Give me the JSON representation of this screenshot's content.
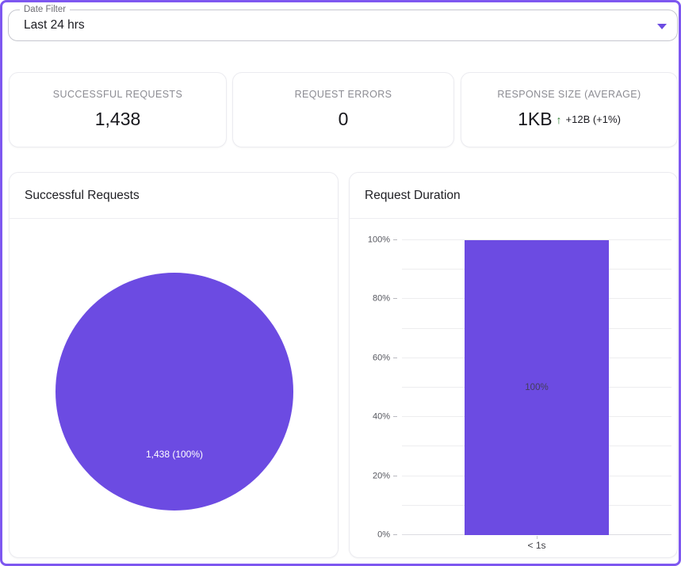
{
  "date_filter": {
    "label": "Date Filter",
    "value": "Last 24 hrs"
  },
  "stats": [
    {
      "label": "SUCCESSFUL REQUESTS",
      "value": "1,438"
    },
    {
      "label": "REQUEST ERRORS",
      "value": "0"
    },
    {
      "label": "RESPONSE SIZE (AVERAGE)",
      "value": "1KB",
      "delta_arrow": "↑",
      "delta": "+12B (+1%)",
      "delta_color": "#2e7d32"
    }
  ],
  "cards": {
    "successful_requests_title": "Successful Requests",
    "request_duration_title": "Request Duration"
  },
  "colors": {
    "accent_purple": "#6c4be2",
    "page_border": "#7e57f0",
    "positive_green": "#2e7d32"
  },
  "chart_data": [
    {
      "type": "pie",
      "title": "Successful Requests",
      "slices": [
        {
          "label": "1,438 (100%)",
          "value": 1438,
          "percent": 100,
          "color": "#6c4be2"
        }
      ],
      "legend_position": "none"
    },
    {
      "type": "bar",
      "title": "Request Duration",
      "categories": [
        "< 1s"
      ],
      "values": [
        100
      ],
      "bar_label": "100%",
      "bar_color": "#6c4be2",
      "ylim": [
        0,
        100
      ],
      "yticks": [
        "0%",
        "20%",
        "40%",
        "60%",
        "80%",
        "100%"
      ],
      "grid_step": 10,
      "grid": true,
      "legend_position": "none"
    }
  ]
}
